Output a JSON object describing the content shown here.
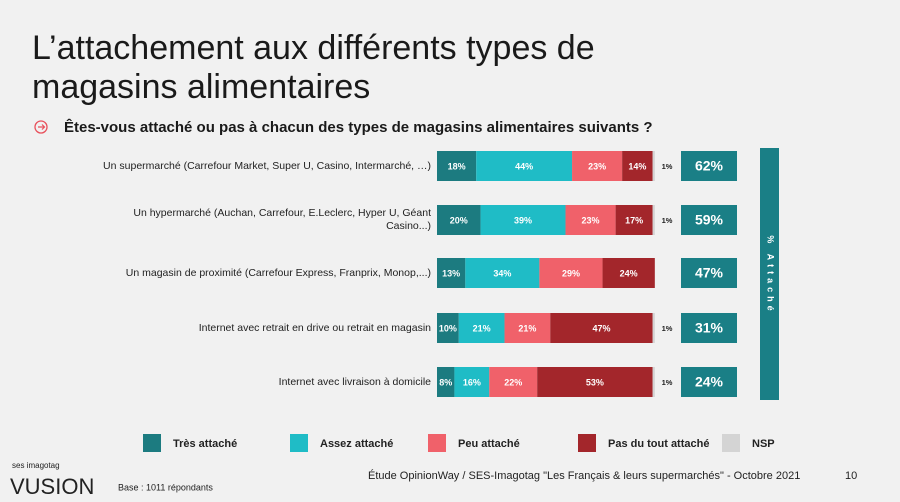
{
  "chart_data": {
    "type": "stacked-bar",
    "orientation": "horizontal",
    "title_lines": [
      "L’attachement aux différents types de",
      "magasins alimentaires"
    ],
    "subtitle": "Êtes-vous attaché ou pas à chacun des types de magasins alimentaires suivants ?",
    "categories": [
      "Un supermarché (Carrefour Market, Super U, Casino, Intermarché, …)",
      "Un hypermarché (Auchan, Carrefour, E.Leclerc, Hyper U, Géant Casino...)",
      "Un magasin de proximité (Carrefour Express, Franprix, Monop,...)",
      "Internet avec retrait en drive ou retrait en magasin",
      "Internet avec livraison à domicile"
    ],
    "xlim": [
      0,
      101
    ],
    "series": [
      {
        "name": "Très attaché",
        "color": "#1c7b80",
        "values": [
          18,
          20,
          13,
          10,
          8
        ],
        "value_labels": [
          "18%",
          "20%",
          "13%",
          "10%",
          "8%"
        ]
      },
      {
        "name": "Assez attaché",
        "color": "#1fbcc6",
        "values": [
          44,
          39,
          34,
          21,
          16
        ],
        "value_labels": [
          "44%",
          "39%",
          "34%",
          "21%",
          "16%"
        ]
      },
      {
        "name": "Peu attaché",
        "color": "#f0616a",
        "values": [
          23,
          23,
          29,
          21,
          22
        ],
        "value_labels": [
          "23%",
          "23%",
          "29%",
          "21%",
          "22%"
        ]
      },
      {
        "name": "Pas du tout attaché",
        "color": "#a3262b",
        "values": [
          14,
          17,
          24,
          47,
          53
        ],
        "value_labels": [
          "14%",
          "17%",
          "24%",
          "47%",
          "53%"
        ]
      },
      {
        "name": "NSP",
        "color": "#d4d4d4",
        "values": [
          1,
          1,
          0,
          1,
          1
        ],
        "value_labels": [
          "1%",
          "1%",
          null,
          "1%",
          "1%"
        ]
      }
    ],
    "totals": {
      "label": "% Attaché",
      "color": "#1a7f86",
      "values": [
        62,
        59,
        47,
        31,
        24
      ],
      "value_labels": [
        "62%",
        "59%",
        "47%",
        "31%",
        "24%"
      ]
    },
    "footer": {
      "brand_small": "ses imagotag",
      "brand": "VUSION",
      "base": "Base : 1011 répondants",
      "source": "Étude OpinionWay / SES-Imagotag \"Les Français & leurs supermarchés\" - Octobre 2021",
      "page": "10"
    }
  }
}
